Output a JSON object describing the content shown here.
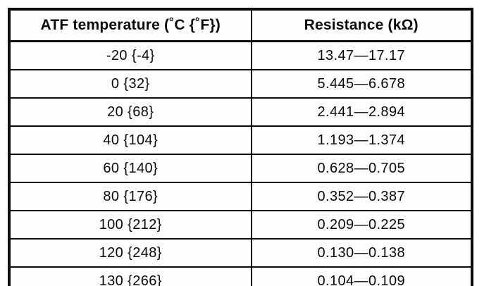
{
  "table": {
    "headers": [
      "ATF temperature (˚C {˚F})",
      "Resistance (kΩ)"
    ],
    "rows": [
      [
        "-20 {-4}",
        "13.47—17.17"
      ],
      [
        "0 {32}",
        "5.445—6.678"
      ],
      [
        "20 {68}",
        "2.441—2.894"
      ],
      [
        "40 {104}",
        "1.193—1.374"
      ],
      [
        "60 {140}",
        "0.628—0.705"
      ],
      [
        "80 {176}",
        "0.352—0.387"
      ],
      [
        "100 {212}",
        "0.209—0.225"
      ],
      [
        "120 {248}",
        "0.130—0.138"
      ],
      [
        "130 {266}",
        "0.104—0.109"
      ]
    ]
  }
}
